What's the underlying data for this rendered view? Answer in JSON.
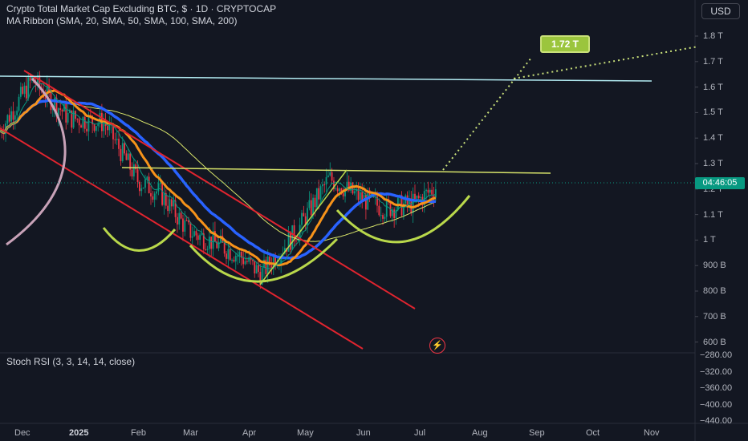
{
  "header": {
    "title": "Crypto Total Market Cap Excluding BTC, $ · 1D · CRYPTOCAP",
    "indicator": "MA Ribbon (SMA, 20, SMA, 50, SMA, 100, SMA, 200)"
  },
  "currency_button": "USD",
  "price_axis": [
    "1.8 T",
    "1.7 T",
    "1.6 T",
    "1.5 T",
    "1.4 T",
    "1.3 T",
    "1.2 T",
    "1.1 T",
    "1 T",
    "900 B",
    "800 B",
    "700 B",
    "600 B"
  ],
  "countdown": "04:46:05",
  "target_label": "1.72 T",
  "oscillator": {
    "title": "Stoch RSI (3, 3, 14, 14, close)",
    "axis": [
      "−280.00",
      "−320.00",
      "−360.00",
      "−400.00",
      "−440.00"
    ]
  },
  "time_axis": [
    "Dec",
    "2025",
    "Feb",
    "Mar",
    "Apr",
    "May",
    "Jun",
    "Jul",
    "Aug",
    "Sep",
    "Oct",
    "Nov"
  ],
  "colors": {
    "background": "#131722",
    "up_candle": "#089981",
    "down_candle": "#f23645",
    "ma20": "#089981",
    "ma50": "#f7931a",
    "ma100": "#2962ff",
    "ma200": "#d7e36a",
    "pattern": "#b9d84b",
    "channel": "#e0242f",
    "resistance_top": "#b2ebf2"
  },
  "icons": {
    "alert": "lightning-icon"
  },
  "chart_data": {
    "type": "candlestick",
    "unit": "USD",
    "x": [
      "Dec",
      "2025",
      "Feb",
      "Mar",
      "Apr",
      "May",
      "Jun",
      "Jul",
      "Aug",
      "Sep",
      "Oct",
      "Nov"
    ],
    "ylim": [
      580000000000,
      1840000000000
    ],
    "approx_close_path": [
      {
        "date": "Dec",
        "value": 1450000000000.0
      },
      {
        "date": "Dec-mid",
        "value": 1650000000000.0
      },
      {
        "date": "2025",
        "value": 1500000000000.0
      },
      {
        "date": "Jan-mid",
        "value": 1480000000000.0
      },
      {
        "date": "Feb",
        "value": 1250000000000.0
      },
      {
        "date": "Feb-mid",
        "value": 1200000000000.0
      },
      {
        "date": "Mar",
        "value": 1050000000000.0
      },
      {
        "date": "Mar-mid",
        "value": 1000000000000.0
      },
      {
        "date": "Apr",
        "value": 950000000000.0
      },
      {
        "date": "Apr-mid",
        "value": 880000000000.0
      },
      {
        "date": "May",
        "value": 1050000000000.0
      },
      {
        "date": "May-mid",
        "value": 1260000000000.0
      },
      {
        "date": "Jun",
        "value": 1180000000000.0
      },
      {
        "date": "Jun-mid",
        "value": 1140000000000.0
      },
      {
        "date": "Jul",
        "value": 1160000000000.0
      },
      {
        "date": "Jul-mid",
        "value": 1230000000000.0
      }
    ],
    "annotations": {
      "target": 1720000000000.0,
      "resistance": 1290000000000.0,
      "upper_line": 1630000000000.0
    }
  }
}
